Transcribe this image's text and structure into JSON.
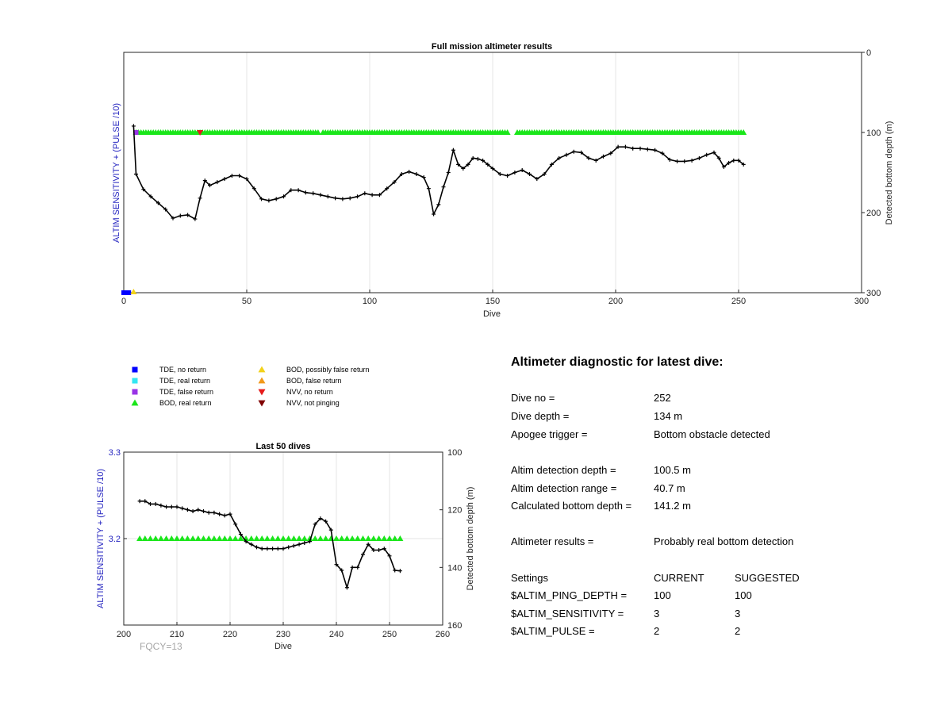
{
  "chart_data": [
    {
      "type": "line",
      "title": "Full mission altimeter results",
      "xlabel": "Dive",
      "ylabel_left": "ALTIM SENSITIVITY + (PULSE /10)",
      "ylabel_right": "Detected bottom depth (m)",
      "xlim": [
        0,
        300
      ],
      "xticks": [
        "0",
        "50",
        "100",
        "150",
        "200",
        "250",
        "300"
      ],
      "ylim_right": [
        0,
        300
      ],
      "yticks_right": [
        "0",
        "100",
        "200",
        "300"
      ],
      "grid": "vertical",
      "series": [
        {
          "name": "Detected bottom depth",
          "x": [
            4,
            5,
            8,
            11,
            14,
            17,
            20,
            23,
            26,
            29,
            31,
            33,
            35,
            38,
            41,
            44,
            47,
            50,
            53,
            56,
            59,
            62,
            65,
            68,
            71,
            74,
            77,
            80,
            83,
            86,
            89,
            92,
            95,
            98,
            101,
            104,
            107,
            110,
            113,
            116,
            119,
            122,
            124,
            126,
            128,
            130,
            132,
            134,
            136,
            138,
            140,
            142,
            144,
            146,
            148,
            150,
            153,
            156,
            159,
            162,
            165,
            168,
            171,
            174,
            177,
            180,
            183,
            186,
            189,
            192,
            195,
            198,
            201,
            204,
            207,
            210,
            213,
            216,
            219,
            222,
            225,
            228,
            231,
            234,
            237,
            240,
            242,
            244,
            246,
            248,
            250,
            252
          ],
          "y": [
            92,
            152,
            171,
            180,
            188,
            196,
            207,
            204,
            203,
            208,
            182,
            160,
            166,
            162,
            158,
            154,
            154,
            158,
            170,
            183,
            185,
            183,
            180,
            172,
            172,
            175,
            176,
            178,
            180,
            182,
            183,
            182,
            180,
            176,
            178,
            178,
            170,
            162,
            152,
            149,
            152,
            156,
            170,
            202,
            190,
            168,
            150,
            122,
            140,
            145,
            140,
            132,
            133,
            135,
            140,
            145,
            152,
            154,
            150,
            147,
            152,
            158,
            152,
            140,
            132,
            128,
            124,
            125,
            132,
            135,
            130,
            126,
            118,
            118,
            120,
            120,
            121,
            122,
            126,
            134,
            136,
            136,
            135,
            132,
            128,
            125,
            132,
            143,
            138,
            135,
            135,
            140
          ]
        },
        {
          "name": "BOD, real return",
          "x_ranges": [
            [
              5,
              65
            ],
            [
              66,
              79
            ],
            [
              81,
              156
            ],
            [
              160,
              252
            ]
          ],
          "y": 100
        },
        {
          "name": "NVV, no return",
          "x": [
            31
          ],
          "y": [
            100
          ]
        },
        {
          "name": "TDE, false return",
          "x": [
            5
          ],
          "y": [
            100
          ]
        },
        {
          "name": "TDE, no return",
          "x": [
            0,
            1,
            2
          ],
          "y": [
            300,
            300,
            300
          ]
        },
        {
          "name": "BOD, possibly false return",
          "x": [
            4
          ],
          "y": [
            300
          ]
        }
      ]
    },
    {
      "type": "line",
      "title": "Last 50 dives",
      "xlabel": "Dive",
      "ylabel_left": "ALTIM SENSITIVITY + (PULSE /10)",
      "ylabel_right": "Detected bottom depth (m)",
      "xlim": [
        200,
        260
      ],
      "xticks": [
        "200",
        "210",
        "220",
        "230",
        "240",
        "250",
        "260"
      ],
      "ylim_left": [
        3.1,
        3.3
      ],
      "yticks_left": [
        "3.2",
        "3.3"
      ],
      "ylim_right": [
        100,
        160
      ],
      "yticks_right": [
        "100",
        "120",
        "140",
        "160"
      ],
      "grid": "vertical",
      "series": [
        {
          "name": "Detected bottom depth",
          "x": [
            203,
            204,
            205,
            206,
            207,
            208,
            209,
            210,
            211,
            212,
            213,
            214,
            215,
            216,
            217,
            218,
            219,
            220,
            221,
            222,
            223,
            224,
            225,
            226,
            227,
            228,
            229,
            230,
            231,
            232,
            233,
            234,
            235,
            236,
            237,
            238,
            239,
            240,
            241,
            242,
            243,
            244,
            245,
            246,
            247,
            248,
            249,
            250,
            251,
            252
          ],
          "y": [
            117,
            117,
            118,
            118,
            118.5,
            119,
            119,
            119,
            119.5,
            120,
            120.5,
            120,
            120.5,
            121,
            121,
            121.5,
            122,
            121.5,
            125,
            128.5,
            131,
            132,
            133,
            133.5,
            133.5,
            133.5,
            133.5,
            133.5,
            133,
            132.5,
            132,
            131.5,
            131,
            125,
            123,
            124,
            127,
            139,
            141,
            147,
            140,
            140,
            135.5,
            132,
            134,
            134,
            133.5,
            136,
            141,
            141.2
          ]
        },
        {
          "name": "BOD, real return",
          "x_range": [
            203,
            252
          ],
          "y": 3.2
        }
      ]
    }
  ],
  "legend": [
    {
      "marker": "square",
      "color": "#0000ff",
      "label": "TDE, no return"
    },
    {
      "marker": "square",
      "color": "#33e6f2",
      "label": "TDE, real return"
    },
    {
      "marker": "square",
      "color": "#9933e6",
      "label": "TDE, false return"
    },
    {
      "marker": "triangle-up",
      "color": "#1ae61a",
      "label": "BOD, real return"
    },
    {
      "marker": "triangle-up",
      "color": "#f2d21a",
      "label": "BOD, possibly false return"
    },
    {
      "marker": "triangle-up",
      "color": "#f2991a",
      "label": "BOD, false return"
    },
    {
      "marker": "triangle-down",
      "color": "#e61a1a",
      "label": "NVV, no return"
    },
    {
      "marker": "triangle-down",
      "color": "#800000",
      "label": "NVV, not pinging"
    }
  ],
  "diagnostic": {
    "title": "Altimeter diagnostic for latest dive:",
    "rows": [
      {
        "label": "Dive no =",
        "value": "252"
      },
      {
        "label": "Dive depth =",
        "value": "134 m"
      },
      {
        "label": "Apogee trigger =",
        "value": "Bottom obstacle detected"
      },
      {
        "label": "Altim detection depth =",
        "value": "100.5 m"
      },
      {
        "label": "Altim detection range =",
        "value": "40.7 m"
      },
      {
        "label": "Calculated bottom depth =",
        "value": "141.2 m"
      },
      {
        "label": "Altimeter results =",
        "value": "Probably real bottom detection"
      }
    ],
    "settings_header": {
      "label": "Settings",
      "current": "CURRENT",
      "suggested": "SUGGESTED"
    },
    "settings": [
      {
        "label": "$ALTIM_PING_DEPTH =",
        "current": "100",
        "suggested": "100"
      },
      {
        "label": "$ALTIM_SENSITIVITY =",
        "current": "3",
        "suggested": "3"
      },
      {
        "label": "$ALTIM_PULSE =",
        "current": "2",
        "suggested": "2"
      }
    ]
  },
  "fqcy": "FQCY=13",
  "colors": {
    "bod_green": "#1ae61a",
    "line_black": "#000000",
    "ylabel_blue": "#2626c0",
    "grid": "#e6e6e6"
  }
}
